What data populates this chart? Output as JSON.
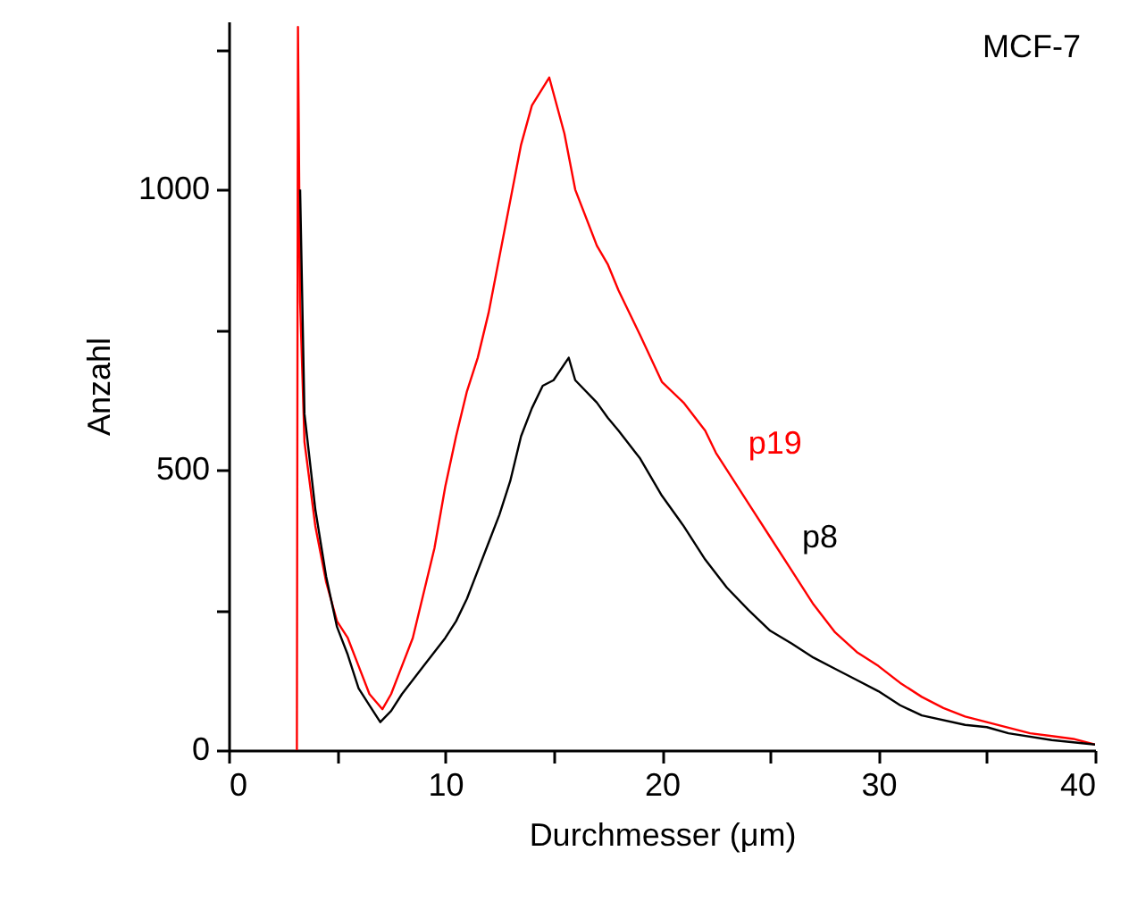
{
  "chart_data": {
    "type": "line",
    "xlabel": "Durchmesser (μm)",
    "ylabel": "Anzahl",
    "annotations": [
      "MCF-7"
    ],
    "xlim": [
      0,
      40
    ],
    "xticks": [
      0,
      {
        "value": 5,
        "label": null
      },
      10,
      {
        "value": 15,
        "label": null
      },
      20,
      {
        "value": 25,
        "label": null
      },
      30,
      {
        "value": 35,
        "label": null
      },
      40
    ],
    "ylim": [
      0,
      1300
    ],
    "yticks": [
      0,
      {
        "value": 250,
        "label": null
      },
      500,
      {
        "value": 750,
        "label": null
      },
      1000,
      {
        "value": 1250,
        "label": null
      }
    ],
    "grid": false,
    "series": [
      {
        "name": "p19",
        "color": "#ff0000",
        "x": [
          3.15,
          3.2,
          3.3,
          3.5,
          4,
          4.5,
          5,
          5.5,
          6,
          6.5,
          7.1,
          7.5,
          8,
          8.5,
          9,
          9.5,
          10,
          10.5,
          11,
          11.5,
          12,
          12.5,
          13,
          13.5,
          14,
          14.8,
          15.5,
          16,
          17,
          17.5,
          18,
          19,
          20,
          21,
          22,
          22.5,
          23,
          24,
          25,
          26,
          27,
          28,
          29,
          30,
          31,
          32,
          33,
          34,
          35,
          36,
          37,
          38,
          39,
          40
        ],
        "values": [
          0,
          1290,
          800,
          550,
          400,
          300,
          230,
          200,
          150,
          100,
          73,
          100,
          150,
          200,
          280,
          360,
          470,
          560,
          640,
          700,
          780,
          880,
          980,
          1080,
          1150,
          1200,
          1100,
          1000,
          900,
          867,
          820,
          740,
          657,
          620,
          570,
          530,
          500,
          440,
          380,
          320,
          260,
          210,
          175,
          150,
          120,
          95,
          75,
          60,
          50,
          40,
          30,
          25,
          20,
          10
        ]
      },
      {
        "name": "p8",
        "color": "#000000",
        "x": [
          3.3,
          3.5,
          4,
          4.5,
          5,
          5.5,
          6,
          6.5,
          7,
          7.5,
          8,
          9,
          10,
          10.5,
          11,
          11.5,
          12,
          12.5,
          13,
          13.5,
          14,
          14.5,
          15,
          15.7,
          16,
          17,
          17.5,
          18,
          19,
          20,
          21,
          22,
          23,
          24,
          25,
          26,
          27,
          28,
          29,
          30,
          31,
          32,
          34,
          35,
          36,
          38,
          40
        ],
        "values": [
          1000,
          600,
          430,
          310,
          220,
          170,
          110,
          80,
          50,
          70,
          100,
          150,
          200,
          230,
          270,
          320,
          370,
          420,
          480,
          560,
          610,
          650,
          660,
          700,
          660,
          620,
          593,
          570,
          520,
          454,
          400,
          340,
          290,
          250,
          213,
          190,
          165,
          145,
          125,
          105,
          80,
          62,
          45,
          41,
          30,
          18,
          10
        ]
      }
    ]
  }
}
